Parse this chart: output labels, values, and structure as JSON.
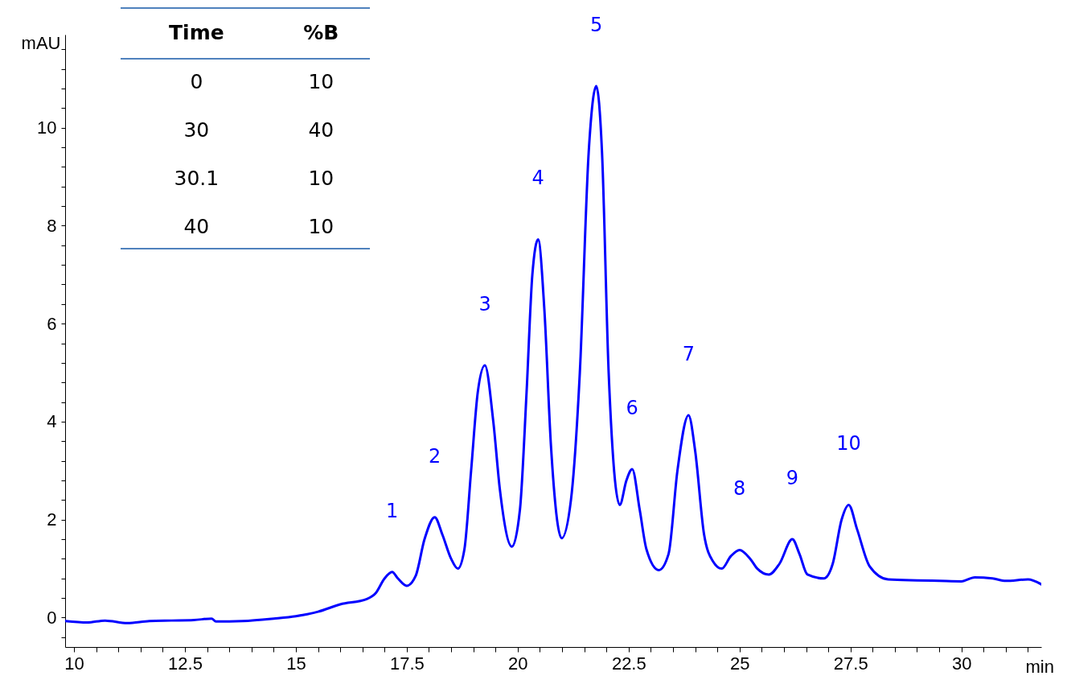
{
  "chart_data": {
    "type": "line",
    "xlabel": "min",
    "ylabel": "mAU",
    "xlim": [
      9.8,
      31.8
    ],
    "ylim": [
      -0.6,
      11.9
    ],
    "xticks": [
      {
        "value": 10,
        "label": "10"
      },
      {
        "value": 10.5,
        "label": null
      },
      {
        "value": 11,
        "label": null
      },
      {
        "value": 11.5,
        "label": null
      },
      {
        "value": 12,
        "label": null
      },
      {
        "value": 12.5,
        "label": "12.5"
      },
      {
        "value": 13,
        "label": null
      },
      {
        "value": 13.5,
        "label": null
      },
      {
        "value": 14,
        "label": null
      },
      {
        "value": 14.5,
        "label": null
      },
      {
        "value": 15,
        "label": "15"
      },
      {
        "value": 15.5,
        "label": null
      },
      {
        "value": 16,
        "label": null
      },
      {
        "value": 16.5,
        "label": null
      },
      {
        "value": 17,
        "label": null
      },
      {
        "value": 17.5,
        "label": "17.5"
      },
      {
        "value": 18,
        "label": null
      },
      {
        "value": 18.5,
        "label": null
      },
      {
        "value": 19,
        "label": null
      },
      {
        "value": 19.5,
        "label": null
      },
      {
        "value": 20,
        "label": "20"
      },
      {
        "value": 20.5,
        "label": null
      },
      {
        "value": 21,
        "label": null
      },
      {
        "value": 21.5,
        "label": null
      },
      {
        "value": 22,
        "label": null
      },
      {
        "value": 22.5,
        "label": "22.5"
      },
      {
        "value": 23,
        "label": null
      },
      {
        "value": 23.5,
        "label": null
      },
      {
        "value": 24,
        "label": null
      },
      {
        "value": 24.5,
        "label": null
      },
      {
        "value": 25,
        "label": "25"
      },
      {
        "value": 25.5,
        "label": null
      },
      {
        "value": 26,
        "label": null
      },
      {
        "value": 26.5,
        "label": null
      },
      {
        "value": 27,
        "label": null
      },
      {
        "value": 27.5,
        "label": "27.5"
      },
      {
        "value": 28,
        "label": null
      },
      {
        "value": 28.5,
        "label": null
      },
      {
        "value": 29,
        "label": null
      },
      {
        "value": 29.5,
        "label": null
      },
      {
        "value": 30,
        "label": "30"
      },
      {
        "value": 30.5,
        "label": null
      },
      {
        "value": 31,
        "label": null
      },
      {
        "value": 31.5,
        "label": null
      }
    ],
    "yticks": [
      {
        "value": -0.4,
        "label": null
      },
      {
        "value": 0,
        "label": "0"
      },
      {
        "value": 0.4,
        "label": null
      },
      {
        "value": 0.8,
        "label": null
      },
      {
        "value": 1.2,
        "label": null
      },
      {
        "value": 1.6,
        "label": null
      },
      {
        "value": 2,
        "label": "2"
      },
      {
        "value": 2.4,
        "label": null
      },
      {
        "value": 2.8,
        "label": null
      },
      {
        "value": 3.2,
        "label": null
      },
      {
        "value": 3.6,
        "label": null
      },
      {
        "value": 4,
        "label": "4"
      },
      {
        "value": 4.4,
        "label": null
      },
      {
        "value": 4.8,
        "label": null
      },
      {
        "value": 5.2,
        "label": null
      },
      {
        "value": 5.6,
        "label": null
      },
      {
        "value": 6,
        "label": "6"
      },
      {
        "value": 6.4,
        "label": null
      },
      {
        "value": 6.8,
        "label": null
      },
      {
        "value": 7.2,
        "label": null
      },
      {
        "value": 7.6,
        "label": null
      },
      {
        "value": 8,
        "label": "8"
      },
      {
        "value": 8.4,
        "label": null
      },
      {
        "value": 8.8,
        "label": null
      },
      {
        "value": 9.2,
        "label": null
      },
      {
        "value": 9.6,
        "label": null
      },
      {
        "value": 10,
        "label": "10"
      },
      {
        "value": 10.4,
        "label": null
      },
      {
        "value": 10.8,
        "label": null
      },
      {
        "value": 11.2,
        "label": null
      },
      {
        "value": 11.6,
        "label": null
      }
    ],
    "grid": false,
    "series": [
      {
        "color": "#0000ff",
        "x": [
          9.8,
          10.3,
          10.7,
          11.2,
          11.7,
          12.2,
          12.7,
          13.1,
          13.2,
          13.8,
          14.5,
          15,
          15.5,
          16,
          16.6,
          16.8,
          17.0,
          17.17,
          17.3,
          17.5,
          17.7,
          17.9,
          18.13,
          18.3,
          18.5,
          18.65,
          18.8,
          18.95,
          19.1,
          19.26,
          19.45,
          19.6,
          19.87,
          20.05,
          20.2,
          20.33,
          20.46,
          20.6,
          20.75,
          20.99,
          21.2,
          21.4,
          21.6,
          21.77,
          21.9,
          22.05,
          22.3,
          22.45,
          22.58,
          22.75,
          22.9,
          23.18,
          23.4,
          23.6,
          23.85,
          24.0,
          24.2,
          24.4,
          24.6,
          24.8,
          25.0,
          25.24,
          25.4,
          25.66,
          25.9,
          26.19,
          26.35,
          26.53,
          26.9,
          27.1,
          27.3,
          27.46,
          27.65,
          27.93,
          28.35,
          29,
          29.5,
          30,
          30.3,
          30.7,
          31.0,
          31.5,
          31.8
        ],
        "values": [
          -0.07,
          -0.1,
          -0.06,
          -0.11,
          -0.07,
          -0.06,
          -0.05,
          -0.02,
          -0.08,
          -0.07,
          -0.02,
          0.03,
          0.12,
          0.27,
          0.38,
          0.5,
          0.8,
          0.93,
          0.8,
          0.65,
          0.85,
          1.6,
          2.05,
          1.7,
          1.2,
          1.0,
          1.4,
          3.0,
          4.6,
          5.15,
          4.0,
          2.6,
          1.45,
          2.2,
          4.6,
          7.0,
          7.72,
          6.3,
          3.5,
          1.62,
          2.4,
          5.0,
          9.5,
          10.85,
          9.5,
          5.0,
          2.3,
          2.8,
          3.03,
          2.2,
          1.4,
          0.97,
          1.3,
          3.0,
          4.13,
          3.4,
          1.7,
          1.15,
          1.0,
          1.25,
          1.38,
          1.2,
          1.0,
          0.88,
          1.1,
          1.6,
          1.3,
          0.88,
          0.8,
          1.1,
          2.0,
          2.3,
          1.8,
          1.05,
          0.78,
          0.76,
          0.75,
          0.74,
          0.82,
          0.8,
          0.75,
          0.78,
          0.68
        ]
      }
    ],
    "annotations": [
      {
        "text": "1",
        "x": 17.17,
        "y": 0.93
      },
      {
        "text": "2",
        "x": 18.13,
        "y": 2.05
      },
      {
        "text": "3",
        "x": 19.26,
        "y": 5.15
      },
      {
        "text": "4",
        "x": 20.46,
        "y": 7.72
      },
      {
        "text": "5",
        "x": 21.77,
        "y": 10.85
      },
      {
        "text": "6",
        "x": 22.58,
        "y": 3.03
      },
      {
        "text": "7",
        "x": 23.85,
        "y": 4.13
      },
      {
        "text": "8",
        "x": 25.0,
        "y": 1.38
      },
      {
        "text": "9",
        "x": 26.19,
        "y": 1.6
      },
      {
        "text": "10",
        "x": 27.46,
        "y": 2.3
      },
      "Time",
      "%B",
      "0",
      "10",
      "30",
      "40",
      "30.1",
      "10",
      "40",
      "10"
    ]
  }
}
